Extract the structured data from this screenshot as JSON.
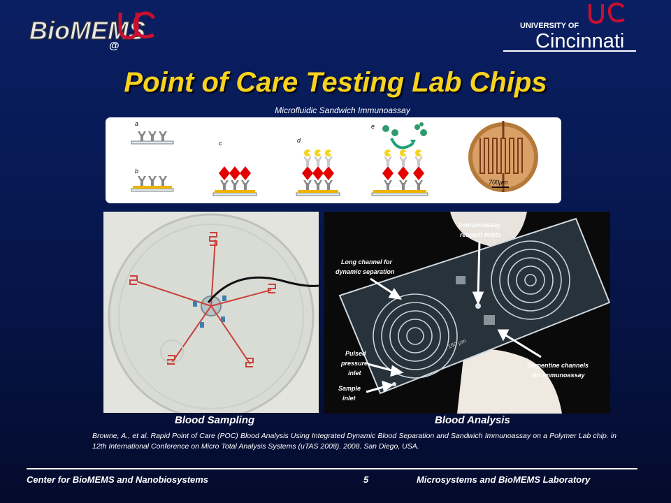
{
  "header": {
    "logo_left_text": "BioMEMS",
    "logo_left_at": "@",
    "logo_right_university": "UNIVERSITY OF",
    "logo_right_name": "Cincinnati"
  },
  "title": "Point of Care Testing Lab Chips",
  "subtitle": "Microfluidic Sandwich Immunoassay",
  "diagram": {
    "labels": [
      "a",
      "b",
      "c",
      "d",
      "e"
    ],
    "scale_label": "700μm"
  },
  "left_photo": {
    "caption": "Blood Sampling"
  },
  "right_photo": {
    "caption": "Blood Analysis",
    "annotations": {
      "immunoassay": "Immunoassay\nreagent inlets",
      "immunoassay_l1": "Immunoassay",
      "immunoassay_l2": "reagent inlets",
      "long_l1": "Long channel for",
      "long_l2": "dynamic separation",
      "pulsed_l1": "Pulsed",
      "pulsed_l2": "pressure",
      "pulsed_l3": "inlet",
      "sample_l1": "Sample",
      "sample_l2": "inlet",
      "serp_l1": "Serpentine channels",
      "serp_l2": "for immunoassay",
      "chip_mark": "150 μm"
    }
  },
  "reference": "Browne, A., et al. Rapid Point of Care (POC) Blood Analysis Using Integrated Dynamic Blood Separation and Sandwich Immunoassay on a Polymer Lab chip. in 12th International Conference on Micro Total Analysis Systems (uTAS 2008). 2008. San Diego, USA.",
  "footer": {
    "left": "Center for BioMEMS and Nanobiosystems",
    "page": "5",
    "right": "Microsystems and BioMEMS Laboratory"
  },
  "colors": {
    "title": "#f7d21e",
    "background": "#0a1f63",
    "uc_red": "#c8102e"
  }
}
